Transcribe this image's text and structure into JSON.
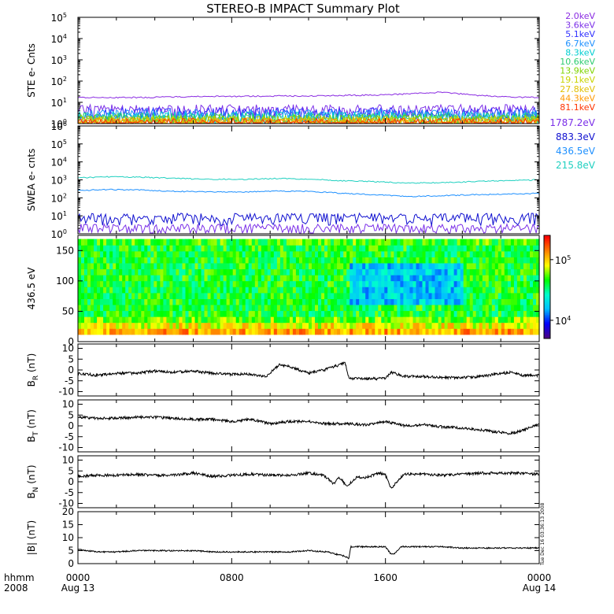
{
  "title": "STEREO-B IMPACT Summary Plot",
  "side_stamp": "Tue Dec 16 03:36:13 2008",
  "x_axis": {
    "corner_top": "hhmm",
    "corner_bottom": "2008",
    "range_hours": [
      0,
      24
    ],
    "ticks": [
      {
        "hour": 0,
        "label": "0000",
        "date": "Aug 13"
      },
      {
        "hour": 8,
        "label": "0800",
        "date": ""
      },
      {
        "hour": 16,
        "label": "1600",
        "date": ""
      },
      {
        "hour": 24,
        "label": "0000",
        "date": "Aug 14"
      }
    ]
  },
  "colors": {
    "STE": [
      "#8a2be2",
      "#7b2fe8",
      "#3030ff",
      "#1e90ff",
      "#00ced1",
      "#2ecc71",
      "#7fd400",
      "#c8d400",
      "#e0c000",
      "#ff9900",
      "#ff3300"
    ],
    "SWEA": [
      "#7b2fe8",
      "#1010d0",
      "#1e90ff",
      "#20d0c0"
    ],
    "colorbar": [
      "#4b0082",
      "#0000ff",
      "#00bfff",
      "#00ffcc",
      "#00ff00",
      "#ffff00",
      "#ff8000",
      "#ff0000"
    ]
  },
  "chart_data": [
    {
      "id": "ste",
      "type": "line",
      "ylabel": "STE e- Cnts",
      "yscale": "log",
      "ylim_log10": [
        0,
        5
      ],
      "yticks": [
        "10^0",
        "10^1",
        "10^2",
        "10^3",
        "10^4",
        "10^5"
      ],
      "series": [
        {
          "name": "2.0keV",
          "base": 17,
          "profile": [
            17,
            17,
            17,
            18,
            19,
            19,
            20,
            20,
            21,
            22,
            25,
            30,
            22,
            18,
            17
          ]
        },
        {
          "name": "3.6keV",
          "base": 4.5
        },
        {
          "name": "5.1keV",
          "base": 3.2
        },
        {
          "name": "6.7keV",
          "base": 2.6
        },
        {
          "name": "8.3keV",
          "base": 2.1
        },
        {
          "name": "10.6keV",
          "base": 1.8
        },
        {
          "name": "13.9keV",
          "base": 1.5
        },
        {
          "name": "19.1keV",
          "base": 1.3
        },
        {
          "name": "27.8keV",
          "base": 1.15
        },
        {
          "name": "44.3keV",
          "base": 1.05
        },
        {
          "name": "81.1keV",
          "base": 1.0
        }
      ]
    },
    {
      "id": "swea",
      "type": "line",
      "ylabel": "SWEA e- cnts",
      "yscale": "log",
      "ylim_log10": [
        0,
        6
      ],
      "yticks": [
        "10^0",
        "10^1",
        "10^2",
        "10^3",
        "10^4",
        "10^5",
        "10^6"
      ],
      "series": [
        {
          "name": "1787.2eV",
          "base": 2
        },
        {
          "name": "883.3eV",
          "base": 8
        },
        {
          "name": "436.5eV",
          "base": 250,
          "profile": [
            260,
            290,
            270,
            230,
            220,
            210,
            240,
            230,
            180,
            150,
            120,
            130,
            150,
            160,
            180
          ]
        },
        {
          "name": "215.8eV",
          "base": 1200,
          "profile": [
            1300,
            1500,
            1400,
            1200,
            1100,
            1050,
            1200,
            1100,
            900,
            800,
            650,
            700,
            800,
            900,
            1000
          ]
        }
      ]
    },
    {
      "id": "spectrogram",
      "type": "heatmap",
      "ylabel": "436.5 eV",
      "ylim": [
        0,
        175
      ],
      "yticks": [
        0,
        50,
        100,
        150
      ],
      "colorbar_ticks": [
        "10^4",
        "10^5"
      ],
      "colorbar_log10_range": [
        3.7,
        5.4
      ]
    },
    {
      "id": "br",
      "type": "line",
      "ylabel": "B_R (nT)",
      "ylim": [
        -12,
        12
      ],
      "yticks": [
        -10,
        -5,
        0,
        5,
        10
      ],
      "x": [
        0,
        1,
        2,
        3,
        4,
        5,
        6,
        7,
        8,
        9,
        9.8,
        10.5,
        11,
        12,
        12.8,
        13.5,
        13.9,
        14.1,
        15,
        16,
        16.3,
        16.8,
        17,
        18,
        19,
        20,
        21,
        22,
        22.7,
        23,
        24
      ],
      "y": [
        -1.5,
        -2.5,
        -1.5,
        -1.5,
        -0.5,
        -1,
        -0.5,
        -1.5,
        -2,
        -2,
        -3,
        2.5,
        1.5,
        -1.5,
        0,
        2,
        3.5,
        -4,
        -4,
        -4,
        -1,
        -2.5,
        -3,
        -3,
        -3.5,
        -3.5,
        -3,
        -1.5,
        -1,
        -2.5,
        -2.5
      ]
    },
    {
      "id": "bt",
      "type": "line",
      "ylabel": "B_T (nT)",
      "ylim": [
        -12,
        12
      ],
      "yticks": [
        -10,
        -5,
        0,
        5,
        10
      ],
      "x": [
        0,
        1,
        2,
        3,
        4,
        5,
        6,
        7,
        8,
        9,
        10,
        11,
        12,
        13,
        14,
        15,
        16,
        16.5,
        17,
        18,
        19,
        20,
        21,
        22,
        22.5,
        23,
        24
      ],
      "y": [
        4,
        3.5,
        3.5,
        4,
        4,
        3.5,
        3,
        3,
        2,
        3,
        1,
        2,
        2,
        1,
        1,
        0.5,
        2,
        1,
        0,
        0.5,
        -0.5,
        -1,
        -2,
        -3,
        -3.5,
        -2.5,
        1
      ]
    },
    {
      "id": "bn",
      "type": "line",
      "ylabel": "B_N (nT)",
      "ylim": [
        -12,
        12
      ],
      "yticks": [
        -10,
        -5,
        0,
        5,
        10
      ],
      "x": [
        0,
        1,
        2,
        3,
        4,
        5,
        6,
        7,
        8,
        9,
        10,
        11,
        12,
        12.8,
        13.3,
        13.6,
        14,
        14.5,
        15,
        15.7,
        16,
        16.3,
        16.8,
        17,
        18,
        19,
        20,
        21,
        22,
        23,
        24
      ],
      "y": [
        2.5,
        3,
        3,
        3.5,
        3,
        3,
        4,
        2.5,
        3,
        3.5,
        3,
        3,
        4,
        3,
        -1,
        2,
        -2,
        2,
        2,
        4,
        3,
        -3,
        2,
        3.5,
        3.5,
        3,
        3.5,
        4,
        4,
        4,
        3.5
      ]
    },
    {
      "id": "bmag",
      "type": "line",
      "ylabel": "|B| (nT)",
      "ylim": [
        0,
        20
      ],
      "yticks": [
        0,
        5,
        10,
        15,
        20
      ],
      "x": [
        0,
        1,
        2,
        3,
        4,
        5,
        6,
        7,
        8,
        9,
        10,
        11,
        12,
        13,
        13.5,
        13.8,
        14.1,
        14.2,
        15,
        16,
        16.3,
        16.5,
        16.8,
        17,
        18,
        19,
        20,
        21,
        22,
        23,
        24
      ],
      "y": [
        5.5,
        4.5,
        4.5,
        5,
        5,
        5,
        5,
        4.5,
        4.5,
        4.5,
        4.5,
        4.5,
        5,
        4.5,
        3.5,
        3,
        2,
        6.5,
        6.5,
        6.5,
        3.5,
        4,
        6.5,
        6.5,
        6.5,
        6.5,
        6,
        6,
        6,
        6,
        6
      ]
    }
  ]
}
